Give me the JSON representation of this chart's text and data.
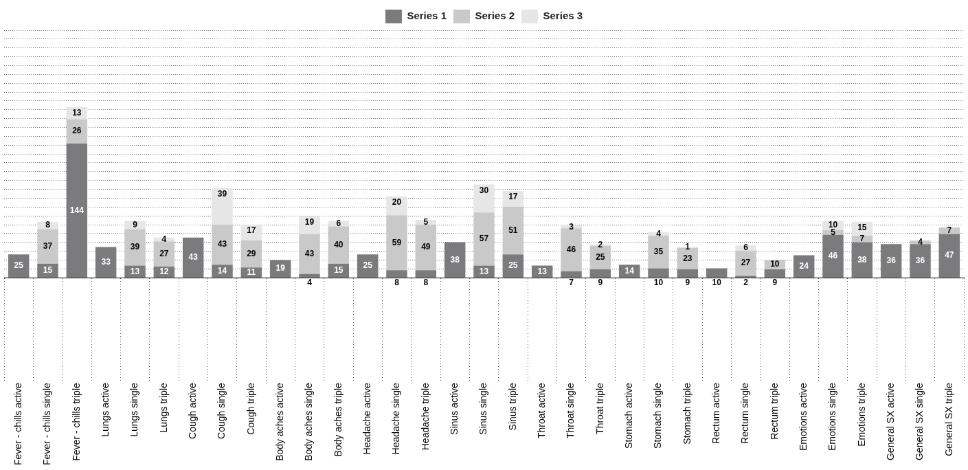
{
  "chart_data": {
    "type": "bar",
    "stacked": true,
    "tick_labels": "x",
    "data_labels": true,
    "grid": "y",
    "legend": "top",
    "categories": [
      "Fever - chills active",
      "Fever - chills single",
      "Fever - chills triple",
      "Lungs active",
      "Lungs single",
      "Lungs triple",
      "Cough active",
      "Cough single",
      "Cough triple",
      "Body aches active",
      "Body aches single",
      "Body aches triple",
      "Headache active",
      "Headache single",
      "Headache triple",
      "Sinus active",
      "Sinus single",
      "Sinus triple",
      "Throat active",
      "Throat single",
      "Throat triple",
      "Stomach active",
      "Stomach single",
      "Stomach triple",
      "Rectum active",
      "Rectum single",
      "Rectum triple",
      "Emotions active",
      "Emotions single",
      "Emotions triple",
      "General SX active",
      "General SX single",
      "General SX triple"
    ],
    "series": [
      {
        "name": "Series 1",
        "color": "#7b7b7d",
        "values": [
          25,
          15,
          144,
          33,
          13,
          12,
          43,
          14,
          11,
          19,
          4,
          15,
          25,
          8,
          8,
          38,
          13,
          25,
          13,
          7,
          9,
          14,
          10,
          9,
          10,
          2,
          9,
          24,
          46,
          38,
          36,
          36,
          47
        ]
      },
      {
        "name": "Series 2",
        "color": "#c9c9c9",
        "values": [
          null,
          37,
          26,
          null,
          39,
          27,
          null,
          43,
          29,
          null,
          43,
          40,
          null,
          59,
          49,
          null,
          57,
          51,
          null,
          46,
          25,
          null,
          35,
          23,
          null,
          27,
          10,
          null,
          5,
          7,
          null,
          4,
          7
        ]
      },
      {
        "name": "Series 3",
        "color": "#e6e6e7",
        "values": [
          null,
          8,
          13,
          null,
          9,
          4,
          null,
          39,
          17,
          null,
          19,
          6,
          null,
          20,
          5,
          null,
          30,
          17,
          null,
          3,
          2,
          null,
          4,
          1,
          null,
          6,
          null,
          null,
          10,
          15,
          null,
          null,
          null
        ]
      }
    ]
  }
}
